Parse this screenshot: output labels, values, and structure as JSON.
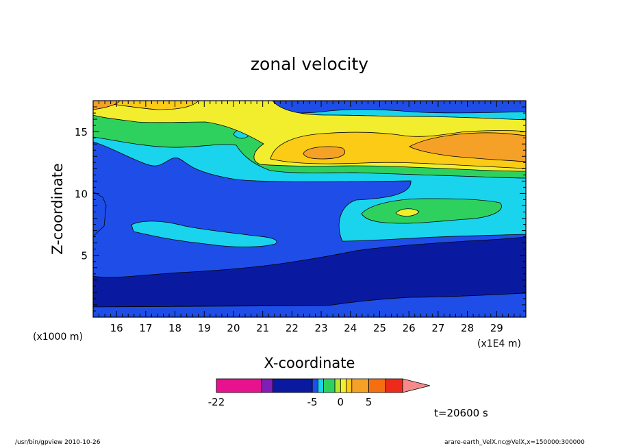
{
  "chart_data": {
    "type": "heatmap",
    "title": "zonal velocity",
    "xlabel": "X-coordinate",
    "ylabel": "Z-coordinate",
    "x_unit_left": "(x1000 m)",
    "x_unit_right": "(x1E4 m)",
    "xlim": [
      15.2,
      30.0
    ],
    "ylim": [
      0.0,
      17.5
    ],
    "x_ticks": [
      16,
      17,
      18,
      19,
      20,
      21,
      22,
      23,
      24,
      25,
      26,
      27,
      28,
      29
    ],
    "y_ticks": [
      5,
      10,
      15
    ],
    "levels": [
      -22,
      -14,
      -12,
      -5,
      -4,
      -3,
      -1,
      0,
      1,
      2,
      5,
      8,
      11
    ],
    "colorbar": {
      "colors": [
        "#e8118e",
        "#7f1fb6",
        "#0a1aa0",
        "#1e4de8",
        "#19d4ec",
        "#2fd15e",
        "#b7e82c",
        "#f2ee2d",
        "#fbcb16",
        "#f5a128",
        "#f56e10",
        "#f02a1a",
        "#f48a8a"
      ],
      "tick_labels": [
        "-22",
        "-5",
        "0",
        "5"
      ]
    },
    "colors": {
      "deep_negative": "#0a1aa0",
      "negative": "#1e4de8",
      "weak_negative": "#19d4ec",
      "near_zero": "#2fd15e",
      "weak_positive": "#f2ee2d",
      "positive": "#fbcb16",
      "strong_positive": "#f5a128"
    }
  },
  "time_label": "t=20600 s",
  "footer": {
    "left": "/usr/bin/gpview   2010-10-26",
    "right": "arare-earth_VelX.nc@VelX,x=150000:300000"
  }
}
